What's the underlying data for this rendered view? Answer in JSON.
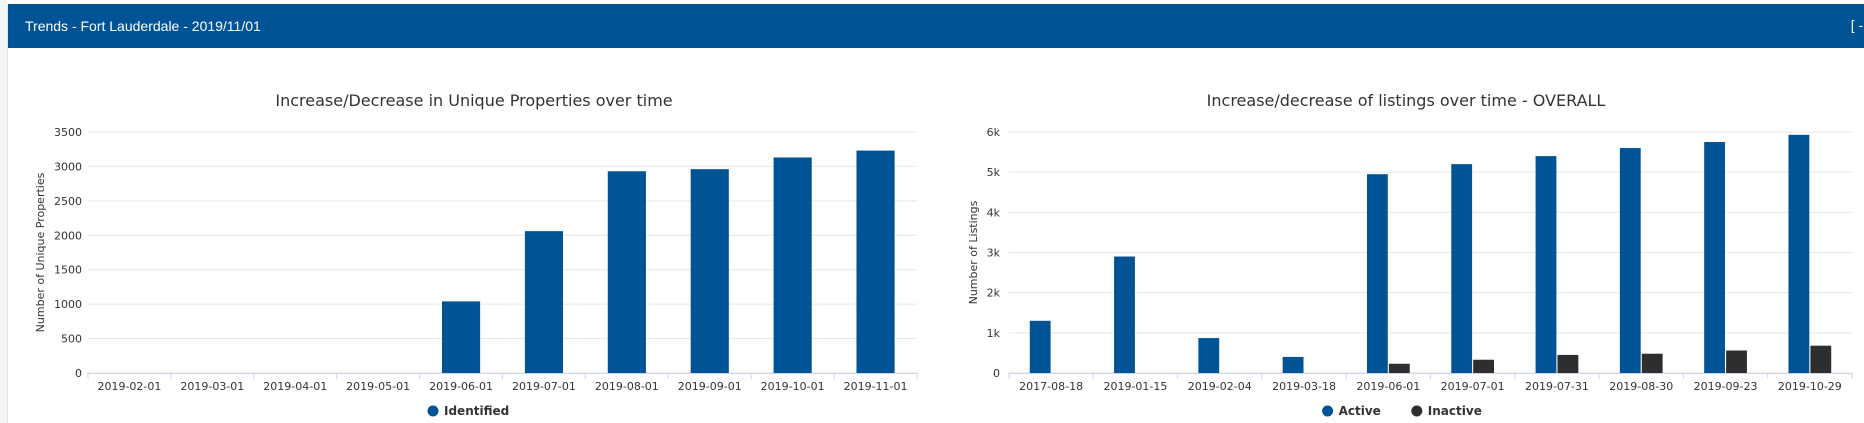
{
  "panel": {
    "title": "Trends - Fort Lauderdale - 2019/11/01",
    "collapse_label": "[ - ]"
  },
  "colors": {
    "header_bg": "#005395",
    "active": "#005395",
    "inactive": "#2e2e2e",
    "grid": "#e6e6e6",
    "axis_text": "#333333"
  },
  "chart_data": [
    {
      "type": "bar",
      "title": "Increase/Decrease in Unique Properties over time",
      "ylabel": "Number of Unique Properties",
      "xlabel": "",
      "categories": [
        "2019-02-01",
        "2019-03-01",
        "2019-04-01",
        "2019-05-01",
        "2019-06-01",
        "2019-07-01",
        "2019-08-01",
        "2019-09-01",
        "2019-10-01",
        "2019-11-01"
      ],
      "series": [
        {
          "name": "Identified",
          "color": "#005395",
          "values": [
            0,
            0,
            0,
            0,
            1040,
            2060,
            2930,
            2960,
            3130,
            3230
          ]
        }
      ],
      "ylim": [
        0,
        3500
      ],
      "yticks": [
        0,
        500,
        1000,
        1500,
        2000,
        2500,
        3000,
        3500
      ],
      "ytick_labels": [
        "0",
        "500",
        "1000",
        "1500",
        "2000",
        "2500",
        "3000",
        "3500"
      ],
      "grid": true,
      "legend": "bottom-center"
    },
    {
      "type": "bar",
      "title": "Increase/decrease of listings over time - OVERALL",
      "ylabel": "Number of Listings",
      "xlabel": "",
      "categories": [
        "2017-08-18",
        "2019-01-15",
        "2019-02-04",
        "2019-03-18",
        "2019-06-01",
        "2019-07-01",
        "2019-07-31",
        "2019-08-30",
        "2019-09-23",
        "2019-10-29"
      ],
      "series": [
        {
          "name": "Active",
          "color": "#005395",
          "values": [
            1300,
            2900,
            870,
            400,
            4950,
            5200,
            5400,
            5600,
            5750,
            5930
          ]
        },
        {
          "name": "Inactive",
          "color": "#2e2e2e",
          "values": [
            0,
            0,
            0,
            0,
            230,
            330,
            450,
            480,
            560,
            680
          ]
        }
      ],
      "ylim": [
        0,
        6000
      ],
      "yticks": [
        0,
        1000,
        2000,
        3000,
        4000,
        5000,
        6000
      ],
      "ytick_labels": [
        "0",
        "1k",
        "2k",
        "3k",
        "4k",
        "5k",
        "6k"
      ],
      "grid": true,
      "legend": "bottom-center"
    }
  ]
}
